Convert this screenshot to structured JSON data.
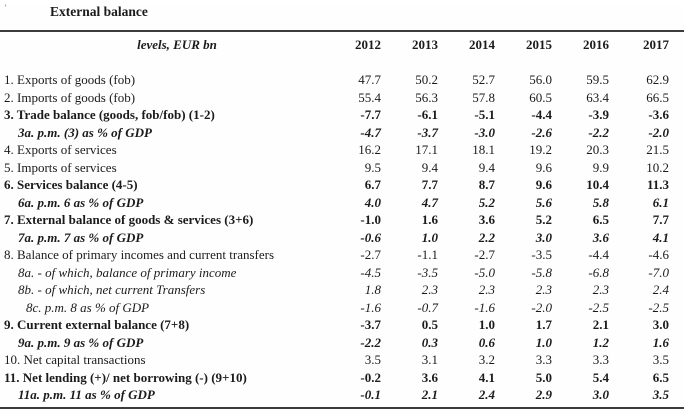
{
  "page": {
    "title": "External balance",
    "corner_mark": "’"
  },
  "table": {
    "header": {
      "label": "levels, EUR bn",
      "years": [
        "2012",
        "2013",
        "2014",
        "2015",
        "2016",
        "2017"
      ]
    },
    "rows": [
      {
        "label": "1. Exports of goods (fob)",
        "style": "normal",
        "indent": 0,
        "values": [
          "47.7",
          "50.2",
          "52.7",
          "56.0",
          "59.5",
          "62.9"
        ]
      },
      {
        "label": "2. Imports of goods (fob)",
        "style": "normal",
        "indent": 0,
        "values": [
          "55.4",
          "56.3",
          "57.8",
          "60.5",
          "63.4",
          "66.5"
        ]
      },
      {
        "label": "3. Trade balance (goods, fob/fob) (1-2)",
        "style": "bold",
        "indent": 0,
        "values": [
          "-7.7",
          "-6.1",
          "-5.1",
          "-4.4",
          "-3.9",
          "-3.6"
        ]
      },
      {
        "label": "3a. p.m. (3) as % of GDP",
        "style": "bold-italic",
        "indent": 1,
        "values": [
          "-4.7",
          "-3.7",
          "-3.0",
          "-2.6",
          "-2.2",
          "-2.0"
        ]
      },
      {
        "label": "4. Exports of services",
        "style": "normal",
        "indent": 0,
        "values": [
          "16.2",
          "17.1",
          "18.1",
          "19.2",
          "20.3",
          "21.5"
        ]
      },
      {
        "label": "5. Imports of services",
        "style": "normal",
        "indent": 0,
        "values": [
          "9.5",
          "9.4",
          "9.4",
          "9.6",
          "9.9",
          "10.2"
        ]
      },
      {
        "label": "6. Services balance (4-5)",
        "style": "bold",
        "indent": 0,
        "values": [
          "6.7",
          "7.7",
          "8.7",
          "9.6",
          "10.4",
          "11.3"
        ]
      },
      {
        "label": "6a. p.m. 6 as % of GDP",
        "style": "bold-italic",
        "indent": 1,
        "values": [
          "4.0",
          "4.7",
          "5.2",
          "5.6",
          "5.8",
          "6.1"
        ]
      },
      {
        "label": "7. External balance of goods & services (3+6)",
        "style": "bold",
        "indent": 0,
        "values": [
          "-1.0",
          "1.6",
          "3.6",
          "5.2",
          "6.5",
          "7.7"
        ]
      },
      {
        "label": "7a. p.m. 7 as % of GDP",
        "style": "bold-italic",
        "indent": 1,
        "values": [
          "-0.6",
          "1.0",
          "2.2",
          "3.0",
          "3.6",
          "4.1"
        ]
      },
      {
        "label": "8. Balance of primary incomes and current transfers",
        "style": "normal",
        "indent": 0,
        "values": [
          "-2.7",
          "-1.1",
          "-2.7",
          "-3.5",
          "-4.4",
          "-4.6"
        ]
      },
      {
        "label": "8a. - of which, balance of primary income",
        "style": "italic",
        "indent": 1,
        "values": [
          "-4.5",
          "-3.5",
          "-5.0",
          "-5.8",
          "-6.8",
          "-7.0"
        ]
      },
      {
        "label": "8b. - of which, net current Transfers",
        "style": "italic",
        "indent": 1,
        "values": [
          "1.8",
          "2.3",
          "2.3",
          "2.3",
          "2.3",
          "2.4"
        ]
      },
      {
        "label": "8c. p.m. 8 as % of GDP",
        "style": "italic",
        "indent": 2,
        "values": [
          "-1.6",
          "-0.7",
          "-1.6",
          "-2.0",
          "-2.5",
          "-2.5"
        ]
      },
      {
        "label": "9. Current external balance (7+8)",
        "style": "bold",
        "indent": 0,
        "values": [
          "-3.7",
          "0.5",
          "1.0",
          "1.7",
          "2.1",
          "3.0"
        ]
      },
      {
        "label": "9a. p.m. 9 as % of GDP",
        "style": "bold-italic",
        "indent": 1,
        "values": [
          "-2.2",
          "0.3",
          "0.6",
          "1.0",
          "1.2",
          "1.6"
        ]
      },
      {
        "label": "10. Net capital transactions",
        "style": "normal",
        "indent": 0,
        "values": [
          "3.5",
          "3.1",
          "3.2",
          "3.3",
          "3.3",
          "3.5"
        ]
      },
      {
        "label": "11. Net lending (+)/ net borrowing (-) (9+10)",
        "style": "bold",
        "indent": 0,
        "values": [
          "-0.2",
          "3.6",
          "4.1",
          "5.0",
          "5.4",
          "6.5"
        ]
      },
      {
        "label": "11a. p.m. 11 as % of GDP",
        "style": "bold-italic",
        "indent": 1,
        "values": [
          "-0.1",
          "2.1",
          "2.4",
          "2.9",
          "3.0",
          "3.5"
        ]
      }
    ]
  },
  "colors": {
    "text": "#1b1b1b",
    "rule": "#3c3c3c",
    "background": "#fefefe"
  }
}
